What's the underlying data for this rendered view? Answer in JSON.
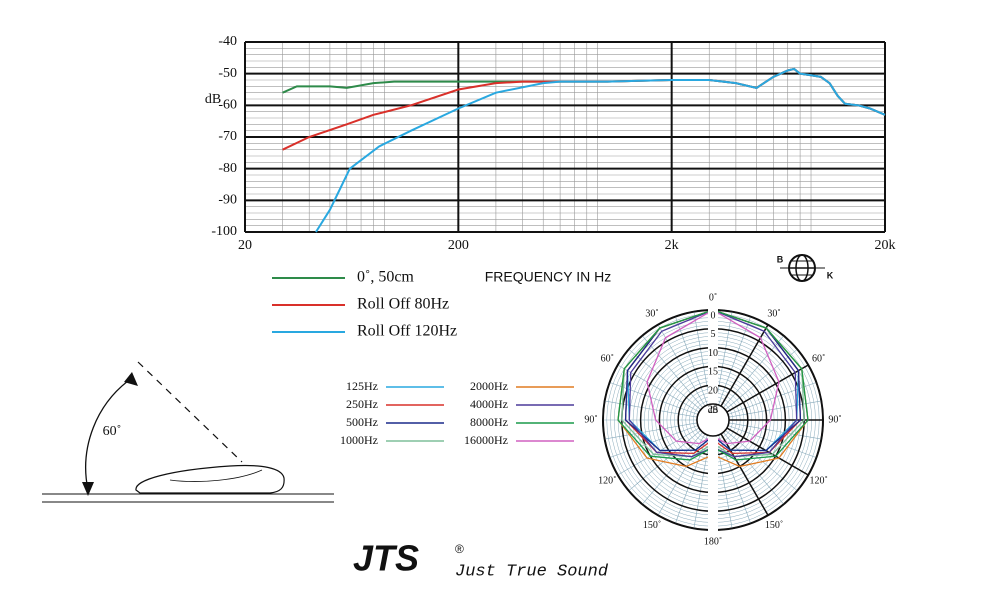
{
  "chart_data": [
    {
      "type": "line",
      "y_label": "dB",
      "x_label": "FREQUENCY IN Hz",
      "log_x": true,
      "grid": true,
      "xlim": [
        20,
        20000
      ],
      "xticks": [
        20,
        200,
        {
          "value": 2000,
          "label": "2k"
        },
        {
          "value": 20000,
          "label": "20k"
        }
      ],
      "ylim": [
        -100,
        -40
      ],
      "yticks": [
        -100,
        -90,
        -80,
        -70,
        -60,
        -50,
        -40
      ],
      "series": [
        {
          "name": "0˚, 50cm",
          "color": "#2e8b4a",
          "x": [
            30,
            35,
            50,
            60,
            80,
            100,
            200,
            500,
            1000,
            2000,
            3000,
            4000,
            5000,
            6000,
            7000,
            7500,
            8000,
            9000,
            10000,
            11000,
            12000,
            13000,
            15000,
            17000,
            20000
          ],
          "values": [
            -56,
            -54,
            -54,
            -54.5,
            -53,
            -52.5,
            -52.5,
            -52.5,
            -52.5,
            -52,
            -52,
            -53,
            -54.5,
            -51,
            -49,
            -48.5,
            -50,
            -50.5,
            -51,
            -53,
            -57,
            -59.5,
            -60,
            -61,
            -63
          ]
        },
        {
          "name": "Roll Off  80Hz",
          "color": "#d9302a",
          "x": [
            30,
            40,
            60,
            80,
            120,
            200,
            300,
            400,
            500,
            1000,
            2000,
            3000,
            4000,
            5000,
            6000,
            7000,
            7500,
            8000,
            9000,
            10000,
            11000,
            12000,
            13000,
            15000,
            17000,
            20000
          ],
          "values": [
            -74,
            -70,
            -66,
            -63,
            -60,
            -55,
            -53,
            -52.5,
            -52.5,
            -52.5,
            -52,
            -52,
            -53,
            -54.5,
            -51,
            -49,
            -48.5,
            -50,
            -50.5,
            -51,
            -53,
            -57,
            -59.5,
            -60,
            -61,
            -63
          ]
        },
        {
          "name": "Roll Off  120Hz",
          "color": "#29a8e0",
          "x": [
            43,
            50,
            62,
            85,
            120,
            200,
            300,
            500,
            600,
            1000,
            2000,
            3000,
            4000,
            5000,
            6000,
            7000,
            7500,
            8000,
            9000,
            10000,
            11000,
            12000,
            13000,
            15000,
            17000,
            20000
          ],
          "values": [
            -100,
            -93,
            -80,
            -73,
            -68,
            -61,
            -56,
            -53,
            -52.5,
            -52.5,
            -52,
            -52,
            -53,
            -54.5,
            -51,
            -49,
            -48.5,
            -50,
            -50.5,
            -51,
            -53,
            -57,
            -59.5,
            -60,
            -61,
            -63
          ]
        }
      ]
    },
    {
      "type": "polar",
      "rlim": [
        25,
        0
      ],
      "rticks": [
        0,
        5,
        10,
        15,
        20,
        25
      ],
      "r_label": "dB",
      "angle_ticks": [
        {
          "value": 0,
          "label": "0˚"
        },
        {
          "value": 30,
          "label": "30˚"
        },
        {
          "value": 60,
          "label": "60˚"
        },
        {
          "value": 90,
          "label": "90˚"
        },
        {
          "value": 120,
          "label": "120˚"
        },
        {
          "value": 150,
          "label": "150˚"
        },
        {
          "value": 180,
          "label": "180˚"
        }
      ],
      "angles": [
        0,
        30,
        60,
        90,
        120,
        150,
        180,
        210,
        240,
        270,
        300,
        330
      ],
      "series": [
        {
          "name": "125Hz",
          "color": "#29a8e0",
          "values": [
            0,
            1,
            3,
            7,
            13,
            20,
            25,
            20,
            13,
            7,
            3,
            1
          ]
        },
        {
          "name": "250Hz",
          "color": "#d9302a",
          "values": [
            0,
            1,
            3,
            6,
            12,
            19,
            24,
            19,
            12,
            6,
            3,
            1
          ]
        },
        {
          "name": "500Hz",
          "color": "#1a2a8a",
          "values": [
            0,
            1,
            3,
            6,
            13,
            20,
            25,
            20,
            13,
            6,
            3,
            1
          ]
        },
        {
          "name": "1000Hz",
          "color": "#7fbf9a",
          "values": [
            0,
            1,
            2,
            5,
            11,
            18,
            23,
            18,
            11,
            5,
            2,
            1
          ]
        },
        {
          "name": "2000Hz",
          "color": "#e07b20",
          "values": [
            0,
            1,
            2,
            4,
            9,
            15,
            20,
            15,
            9,
            4,
            2,
            1
          ]
        },
        {
          "name": "4000Hz",
          "color": "#4b3a9a",
          "values": [
            0,
            2,
            4,
            7,
            12,
            18,
            22,
            18,
            12,
            7,
            4,
            2
          ]
        },
        {
          "name": "8000Hz",
          "color": "#1a9a4a",
          "values": [
            0,
            1,
            2,
            4,
            10,
            17,
            22,
            17,
            10,
            4,
            2,
            1
          ]
        },
        {
          "name": "16000Hz",
          "color": "#d060c0",
          "values": [
            0,
            4,
            9,
            14,
            18,
            22,
            25,
            22,
            18,
            14,
            9,
            4
          ]
        }
      ]
    }
  ],
  "diagram": {
    "angle_label": "60˚"
  },
  "brand": {
    "logo": "JTS",
    "registered": "®",
    "slogan": "Just  True  Sound",
    "bk_left": "B",
    "bk_right": "K"
  }
}
